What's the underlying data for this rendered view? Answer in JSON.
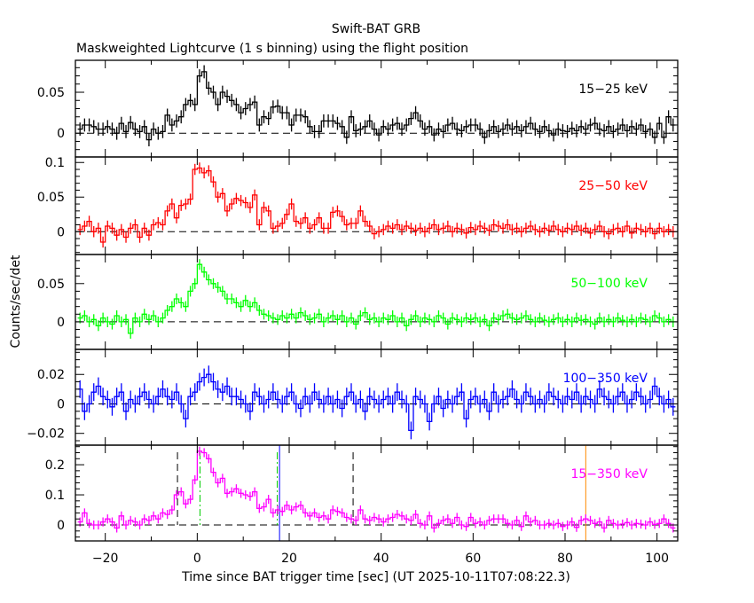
{
  "chart_data": {
    "type": "line",
    "title": "Swift-BAT GRB",
    "subtitle": "Maskweighted Lightcurve (1 s binning) using the flight position",
    "xlabel": "Time since BAT trigger time [sec] (UT 2025-10-11T07:08:22.3)",
    "ylabel": "Counts/sec/det",
    "xlim": [
      -26.5,
      104.5
    ],
    "x_ticks": [
      -20,
      0,
      20,
      40,
      60,
      80,
      100
    ],
    "t0": -26,
    "binsize": 1,
    "panels": [
      {
        "name": "15-25 keV",
        "label": "15−25 keV",
        "color": "#000000",
        "ylim": [
          -0.029,
          0.089
        ],
        "y_ticks": [
          0,
          0.05
        ],
        "y_tick_labels": [
          "0",
          "0.05"
        ],
        "minor": 0.01,
        "error": 0.008,
        "values": [
          0.005,
          0.01,
          0.01,
          0.008,
          0.005,
          0.005,
          0.008,
          0.005,
          0,
          0.012,
          0.002,
          0.013,
          0.005,
          0.002,
          0.008,
          -0.008,
          0.005,
          0,
          0.002,
          0.022,
          0.01,
          0.015,
          0.02,
          0.035,
          0.04,
          0.035,
          0.07,
          0.075,
          0.055,
          0.05,
          0.035,
          0.05,
          0.045,
          0.04,
          0.035,
          0.025,
          0.03,
          0.035,
          0.038,
          0.01,
          0.02,
          0.018,
          0.032,
          0.033,
          0.025,
          0.025,
          0.01,
          0.022,
          0.022,
          0.02,
          0.008,
          0.002,
          0.002,
          0.015,
          0.015,
          0.015,
          0.012,
          0.008,
          -0.005,
          0.02,
          0.003,
          0.005,
          0.008,
          0.015,
          0.005,
          -0.002,
          0.008,
          0.005,
          0.01,
          0.012,
          0.005,
          0.01,
          0.018,
          0.025,
          0.015,
          0.005,
          0.008,
          -0.002,
          0.005,
          0.002,
          0.01,
          0.012,
          0.005,
          0.003,
          0.008,
          0.01,
          0.01,
          0.005,
          -0.005,
          0.003,
          0.008,
          0.002,
          0.005,
          0.01,
          0.005,
          0.008,
          0.003,
          0.008,
          0.012,
          0.005,
          0.002,
          0.008,
          0.003,
          -0.002,
          0.005,
          0.003,
          0.002,
          0.006,
          0.003,
          0.008,
          0.005,
          0.01,
          0.012,
          0.005,
          0.003,
          0.008,
          0.002,
          0.005,
          0.01,
          0.003,
          0.008,
          0.005,
          0.01,
          0.002,
          0.005,
          -0.005,
          0.012,
          -0.005,
          0.02,
          0.01
        ]
      },
      {
        "name": "25-50 keV",
        "label": "25−50 keV",
        "color": "#ff0000",
        "ylim": [
          -0.033,
          0.108
        ],
        "y_ticks": [
          0,
          0.05,
          0.1
        ],
        "y_tick_labels": [
          "0",
          "0.05",
          "0.1"
        ],
        "minor": 0.01,
        "error": 0.008,
        "values": [
          0.003,
          0.008,
          0.015,
          0.0,
          0.005,
          -0.015,
          0.008,
          0.005,
          -0.005,
          0.003,
          -0.008,
          0.005,
          0.01,
          -0.008,
          0.005,
          -0.005,
          0.01,
          0.013,
          0.01,
          0.03,
          0.04,
          0.02,
          0.038,
          0.04,
          0.047,
          0.09,
          0.092,
          0.085,
          0.088,
          0.072,
          0.05,
          0.055,
          0.03,
          0.04,
          0.048,
          0.045,
          0.042,
          0.035,
          0.053,
          0.01,
          0.035,
          0.03,
          0.005,
          0.008,
          0.012,
          0.025,
          0.04,
          0.015,
          0.012,
          0.02,
          0.005,
          0.01,
          0.02,
          0.005,
          0.005,
          0.028,
          0.03,
          0.022,
          0.01,
          0.012,
          0.012,
          0.03,
          0.015,
          0.008,
          -0.003,
          0.0,
          0.003,
          0.008,
          0.005,
          0.01,
          0.003,
          0.008,
          0.005,
          0.002,
          0.005,
          0.0,
          0.005,
          0.01,
          0.003,
          0.005,
          0.008,
          0.0,
          0.005,
          0.003,
          -0.002,
          0.006,
          0.003,
          0.008,
          0.005,
          0.002,
          0.01,
          0.008,
          0.005,
          0.01,
          0.003,
          0.005,
          0.0,
          0.005,
          0.008,
          0.003,
          0.0,
          0.005,
          0.002,
          0.008,
          0.003,
          0.0,
          0.005,
          0.003,
          0.008,
          0.002,
          0.005,
          -0.002,
          0.003,
          0.008,
          0.0,
          -0.003,
          0.003,
          0.005,
          0.0,
          0.008,
          -0.002,
          0.005,
          0.003,
          0.0,
          0.005,
          -0.003,
          0.005,
          0.0,
          0.003,
          0.0
        ]
      },
      {
        "name": "50-100 keV",
        "label": "50−100 keV",
        "color": "#00ff00",
        "ylim": [
          -0.036,
          0.088
        ],
        "y_ticks": [
          0,
          0.05
        ],
        "y_tick_labels": [
          "0",
          "0.05"
        ],
        "minor": 0.01,
        "error": 0.007,
        "values": [
          0.005,
          0.008,
          0.0,
          0.003,
          -0.005,
          0.005,
          0.0,
          -0.003,
          0.008,
          0.0,
          0.003,
          -0.015,
          0.005,
          0.0,
          0.01,
          0.003,
          0.008,
          0.0,
          0.005,
          0.015,
          0.02,
          0.03,
          0.025,
          0.02,
          0.04,
          0.05,
          0.075,
          0.065,
          0.055,
          0.05,
          0.045,
          0.04,
          0.03,
          0.03,
          0.025,
          0.02,
          0.028,
          0.02,
          0.025,
          0.015,
          0.01,
          0.008,
          0.005,
          0.003,
          0.008,
          0.005,
          0.01,
          0.005,
          0.012,
          0.008,
          0.003,
          0.005,
          0.01,
          0.0,
          0.005,
          0.008,
          0.003,
          0.008,
          0.0,
          0.005,
          -0.003,
          0.008,
          0.012,
          0.003,
          0.005,
          0.0,
          0.005,
          0.003,
          0.008,
          0.0,
          0.005,
          -0.005,
          0.003,
          0.008,
          0.0,
          0.005,
          0.003,
          0.0,
          0.008,
          0.005,
          -0.003,
          0.005,
          0.003,
          0.0,
          0.005,
          0.003,
          0.005,
          0.0,
          0.003,
          -0.005,
          0.005,
          0.003,
          0.008,
          0.01,
          0.005,
          0.003,
          0.005,
          0.008,
          0.003,
          0.0,
          0.005,
          0.002,
          0.0,
          0.003,
          0.005,
          0.0,
          0.003,
          0.0,
          0.005,
          0.002,
          0.003,
          0.0,
          -0.003,
          0.005,
          0.0,
          0.003,
          0.0,
          0.005,
          0.002,
          0.0,
          0.003,
          0.0,
          0.005,
          0.003,
          0.0,
          0.008,
          0.005,
          0.0,
          0.003,
          0.0
        ]
      },
      {
        "name": "100-350 keV",
        "label": "100−350 keV",
        "color": "#0000ff",
        "ylim": [
          -0.028,
          0.037
        ],
        "y_ticks": [
          -0.02,
          0,
          0.02
        ],
        "y_tick_labels": [
          "−0.02",
          "0",
          "0.02"
        ],
        "minor": 0.005,
        "error": 0.006,
        "values": [
          0.01,
          -0.005,
          0.0,
          0.008,
          0.012,
          0.005,
          0.003,
          -0.002,
          0.005,
          0.008,
          -0.005,
          0.003,
          0.0,
          0.005,
          0.008,
          0.003,
          0.0,
          0.005,
          0.01,
          0.005,
          0.003,
          0.008,
          0.0,
          -0.01,
          0.005,
          0.008,
          0.015,
          0.018,
          0.02,
          0.015,
          0.01,
          0.008,
          0.012,
          0.005,
          0.005,
          0.003,
          0.0,
          -0.005,
          0.008,
          0.005,
          0.0,
          0.003,
          0.008,
          0.003,
          0.0,
          0.005,
          0.008,
          0.0,
          -0.003,
          0.005,
          0.0,
          0.008,
          0.003,
          0.0,
          0.005,
          0.0,
          0.003,
          -0.003,
          0.005,
          0.008,
          0.0,
          0.003,
          -0.005,
          0.005,
          0.003,
          0.0,
          0.003,
          0.005,
          0.0,
          0.008,
          0.003,
          0.0,
          -0.018,
          0.005,
          0.003,
          0.0,
          -0.012,
          0.0,
          0.005,
          -0.003,
          0.003,
          0.0,
          0.005,
          0.008,
          -0.01,
          0.003,
          0.005,
          0.0,
          0.003,
          -0.005,
          0.008,
          0.0,
          0.003,
          0.005,
          0.01,
          0.003,
          0.0,
          0.008,
          0.005,
          0.0,
          0.003,
          0.0,
          0.008,
          0.005,
          0.003,
          0.0,
          0.005,
          0.003,
          0.008,
          0.0,
          0.005,
          0.003,
          0.0,
          0.01,
          0.005,
          0.003,
          0.0,
          0.005,
          0.008,
          0.0,
          0.003,
          0.008,
          0.005,
          0.0,
          0.003,
          0.012,
          0.005,
          0.0,
          0.003,
          -0.002
        ]
      },
      {
        "name": "15-350 keV",
        "label": "15−350 keV",
        "color": "#ff00ff",
        "ylim": [
          -0.053,
          0.265
        ],
        "y_ticks": [
          0,
          0.1,
          0.2
        ],
        "y_tick_labels": [
          "0",
          "0.1",
          "0.2"
        ],
        "minor": 0.02,
        "error": 0.015,
        "values": [
          0.01,
          0.04,
          0.005,
          0.0,
          0.0,
          0.01,
          0.02,
          0.01,
          -0.01,
          0.03,
          0.0,
          0.015,
          0.01,
          0.0,
          0.02,
          0.015,
          0.03,
          0.02,
          0.04,
          0.035,
          0.05,
          0.1,
          0.11,
          0.07,
          0.085,
          0.15,
          0.245,
          0.24,
          0.22,
          0.175,
          0.14,
          0.155,
          0.105,
          0.11,
          0.12,
          0.105,
          0.1,
          0.095,
          0.11,
          0.055,
          0.06,
          0.085,
          0.04,
          0.05,
          0.045,
          0.065,
          0.05,
          0.06,
          0.065,
          0.04,
          0.03,
          0.04,
          0.025,
          0.03,
          0.02,
          0.05,
          0.045,
          0.04,
          0.025,
          0.02,
          0.015,
          0.05,
          0.02,
          0.015,
          0.025,
          0.02,
          0.01,
          0.02,
          0.025,
          0.035,
          0.03,
          0.02,
          0.015,
          0.035,
          0.005,
          0.0,
          0.03,
          -0.01,
          0.005,
          0.015,
          0.02,
          0.005,
          0.025,
          0.0,
          -0.005,
          0.025,
          0.005,
          0.01,
          0.0,
          0.015,
          0.02,
          0.02,
          0.02,
          0.005,
          0.0,
          0.015,
          -0.005,
          0.03,
          0.01,
          0.015,
          0.0,
          0.0,
          0.005,
          0.0,
          0.005,
          -0.005,
          0.0,
          0.01,
          -0.008,
          0.015,
          0.02,
          0.015,
          0.005,
          0.01,
          -0.01,
          0.015,
          0.005,
          0.0,
          0.003,
          0.008,
          0.0,
          0.005,
          0.003,
          0.0,
          0.01,
          0.002,
          0.005,
          0.02,
          0.005,
          -0.01
        ],
        "markers": [
          {
            "x": -4.3,
            "color": "#000000",
            "style": "dashed"
          },
          {
            "x": 33.9,
            "color": "#000000",
            "style": "dashed"
          },
          {
            "x": 0.6,
            "color": "#00cc00",
            "style": "dashdot"
          },
          {
            "x": 17.4,
            "color": "#00cc00",
            "style": "dashdot"
          },
          {
            "x": 17.9,
            "color": "#0000ff",
            "style": "solid"
          },
          {
            "x": 84.5,
            "color": "#ff8800",
            "style": "solid"
          }
        ]
      }
    ]
  }
}
